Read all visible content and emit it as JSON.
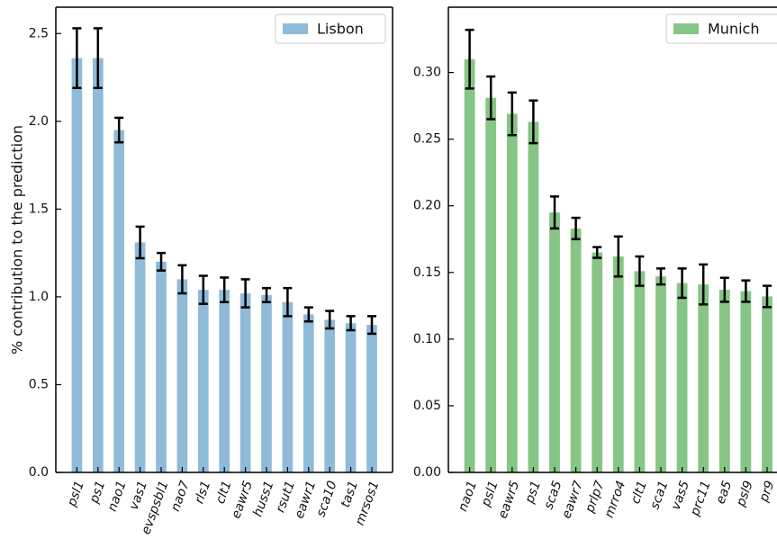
{
  "chart_data": [
    {
      "type": "bar",
      "ylabel": "% contribution to the prediction",
      "categories": [
        "psl1",
        "ps1",
        "nao1",
        "vas1",
        "evspsbl1",
        "nao7",
        "rls1",
        "clt1",
        "eawr5",
        "huss1",
        "rsut1",
        "eawr1",
        "sca10",
        "tas1",
        "mrsos1"
      ],
      "series": [
        {
          "name": "Lisbon",
          "color": "#8fbbd9",
          "values": [
            2.36,
            2.36,
            1.95,
            1.31,
            1.2,
            1.1,
            1.04,
            1.04,
            1.02,
            1.01,
            0.97,
            0.9,
            0.87,
            0.85,
            0.84
          ],
          "errors": [
            0.17,
            0.17,
            0.07,
            0.09,
            0.05,
            0.08,
            0.08,
            0.07,
            0.08,
            0.04,
            0.08,
            0.04,
            0.05,
            0.04,
            0.05
          ]
        }
      ],
      "ylim": [
        0,
        2.65
      ],
      "yticks": [
        {
          "value": 0,
          "label": "0.0"
        },
        0.5,
        {
          "value": 1,
          "label": "1.0"
        },
        1.5,
        {
          "value": 2,
          "label": "2.0"
        },
        2.5
      ],
      "legend": "upper right"
    },
    {
      "type": "bar",
      "categories": [
        "nao1",
        "psl1",
        "eawr5",
        "ps1",
        "sca5",
        "eawr7",
        "prlp7",
        "mrro4",
        "clt1",
        "sca1",
        "vas5",
        "prc11",
        "ea5",
        "psl9",
        "pr9"
      ],
      "series": [
        {
          "name": "Munich",
          "color": "#86c586",
          "values": [
            0.31,
            0.281,
            0.269,
            0.263,
            0.195,
            0.183,
            0.165,
            0.162,
            0.151,
            0.147,
            0.142,
            0.141,
            0.137,
            0.136,
            0.132
          ],
          "errors": [
            0.022,
            0.016,
            0.016,
            0.016,
            0.012,
            0.008,
            0.004,
            0.015,
            0.011,
            0.006,
            0.011,
            0.015,
            0.009,
            0.008,
            0.008
          ]
        }
      ],
      "ylim": [
        0,
        0.349
      ],
      "yticks": [
        {
          "value": 0,
          "label": "0.00"
        },
        0.05,
        {
          "value": 0.1,
          "label": "0.10"
        },
        0.15,
        {
          "value": 0.2,
          "label": "0.20"
        },
        0.25,
        {
          "value": 0.3,
          "label": "0.30"
        }
      ],
      "legend": "upper right"
    }
  ]
}
